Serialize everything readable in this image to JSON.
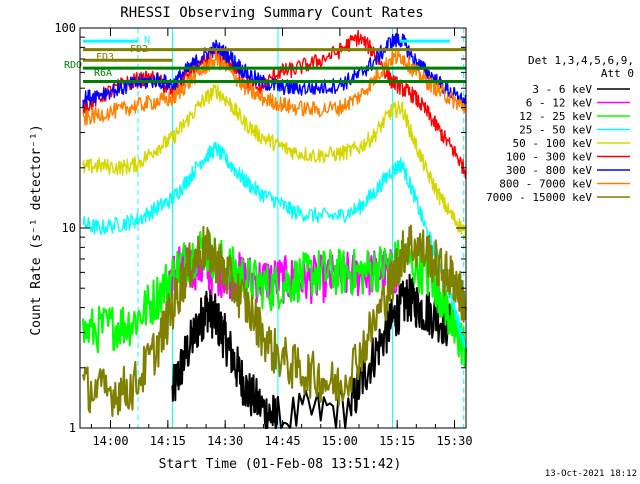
{
  "chart_data": {
    "type": "line",
    "title": "RHESSI Observing Summary Count Rates",
    "xlabel": "Start Time (01-Feb-08 13:51:42)",
    "ylabel": "Count Rate (s⁻¹ detector⁻¹)",
    "x_range_minutes": [
      13.867,
      15.55
    ],
    "x_tick_labels": [
      "14:00",
      "14:15",
      "14:30",
      "14:45",
      "15:00",
      "15:15",
      "15:30"
    ],
    "x_tick_values_hours": [
      14.0,
      14.25,
      14.5,
      14.75,
      15.0,
      15.25,
      15.5
    ],
    "y_scale": "log",
    "ylim": [
      1,
      100
    ],
    "y_tick_labels": [
      "1",
      "10",
      "100"
    ],
    "y_tick_values": [
      1,
      10,
      100
    ],
    "footer_date": "13-Oct-2021 18:12",
    "legend": {
      "placement": "right",
      "header_line1": "Det 1,3,4,5,6,9,",
      "header_line2": "Att 0",
      "entries": [
        {
          "label": "3 - 6 keV",
          "color": "#000000"
        },
        {
          "label": "6 - 12 keV",
          "color": "#ff00ff"
        },
        {
          "label": "12 - 25 keV",
          "color": "#00ff00"
        },
        {
          "label": "25 - 50 keV",
          "color": "#00ffff"
        },
        {
          "label": "50 - 100 keV",
          "color": "#d7d700"
        },
        {
          "label": "100 - 300 keV",
          "color": "#ff0000"
        },
        {
          "label": "300 - 800 keV",
          "color": "#0000ff"
        },
        {
          "label": "800 - 7000 keV",
          "color": "#ff8000"
        },
        {
          "label": "7000 - 15000 keV",
          "color": "#808000"
        }
      ]
    },
    "flag_bars": [
      {
        "label": "N",
        "color": "#00ffff",
        "segments": [
          [
            13.88,
            14.12
          ],
          [
            15.26,
            15.48
          ]
        ],
        "y": 86
      },
      {
        "label": "FD2",
        "color": "#808000",
        "segments": [
          [
            13.88,
            15.55
          ]
        ],
        "y": 78
      },
      {
        "label": "FD3",
        "color": "#808000",
        "segments": [
          [
            13.88,
            14.27
          ]
        ],
        "y": 69
      },
      {
        "label": "RDO",
        "color": "#008000",
        "segments": [
          [
            13.88,
            15.55
          ]
        ],
        "y": 63
      },
      {
        "label": "R6A",
        "color": "#008000",
        "segments": [
          [
            13.88,
            15.55
          ]
        ],
        "y": 54
      }
    ],
    "vertical_markers": [
      {
        "x": 14.27,
        "color": "#00ffff",
        "style": "solid"
      },
      {
        "x": 14.73,
        "color": "#00ffff",
        "style": "solid"
      },
      {
        "x": 15.23,
        "color": "#00ffff",
        "style": "solid"
      },
      {
        "x": 14.12,
        "color": "#00ffff",
        "style": "dashed"
      },
      {
        "x": 15.54,
        "color": "#00ffff",
        "style": "dashed"
      }
    ],
    "series": [
      {
        "name": "3 - 6 keV",
        "color": "#000000",
        "x": [
          14.27,
          14.32,
          14.38,
          14.42,
          14.46,
          14.5,
          14.55,
          14.6,
          14.68,
          14.73,
          15.05,
          15.12,
          15.2,
          15.25,
          15.3,
          15.35,
          15.42,
          15.48
        ],
        "y": [
          1.5,
          2.2,
          3.2,
          4.0,
          3.5,
          2.8,
          2.0,
          1.5,
          1.2,
          1.1,
          1.3,
          2.0,
          3.0,
          3.8,
          4.5,
          4.0,
          3.6,
          3.2
        ]
      },
      {
        "name": "6 - 12 keV",
        "color": "#ff00ff",
        "x": [
          14.25,
          14.3,
          14.38,
          14.45,
          14.55,
          14.65,
          14.75,
          14.85,
          14.95,
          15.05,
          15.15,
          15.25
        ],
        "y": [
          5.5,
          6.2,
          6.5,
          6.0,
          5.8,
          5.5,
          5.5,
          5.5,
          5.6,
          5.8,
          6.0,
          6.0
        ]
      },
      {
        "name": "12 - 25 keV",
        "color": "#00ff00",
        "x": [
          13.88,
          14.0,
          14.1,
          14.2,
          14.3,
          14.4,
          14.5,
          14.6,
          14.7,
          14.8,
          14.9,
          15.0,
          15.1,
          15.2,
          15.3,
          15.4,
          15.45,
          15.5,
          15.55
        ],
        "y": [
          3.0,
          3.2,
          3.4,
          4.5,
          6.5,
          8.0,
          6.5,
          5.5,
          5.0,
          5.5,
          6.0,
          6.0,
          6.0,
          6.5,
          7.0,
          5.5,
          4.5,
          3.0,
          2.5
        ]
      },
      {
        "name": "25 - 50 keV",
        "color": "#00ffff",
        "x": [
          13.88,
          13.95,
          14.05,
          14.12,
          14.2,
          14.27,
          14.33,
          14.4,
          14.46,
          14.52,
          14.58,
          14.65,
          14.73,
          14.8,
          14.9,
          15.0,
          15.08,
          15.15,
          15.22,
          15.27,
          15.32,
          15.38,
          15.44,
          15.5,
          15.55
        ],
        "y": [
          10.5,
          10.0,
          10.5,
          11.0,
          12.5,
          14.0,
          17.0,
          22.0,
          25.0,
          21.0,
          17.5,
          15.0,
          13.5,
          12.0,
          11.5,
          11.5,
          12.5,
          15.0,
          19.0,
          21.0,
          15.0,
          9.5,
          6.5,
          4.0,
          2.5
        ]
      },
      {
        "name": "50 - 100 keV",
        "color": "#d7d700",
        "x": [
          13.88,
          13.95,
          14.05,
          14.12,
          14.2,
          14.27,
          14.33,
          14.4,
          14.46,
          14.52,
          14.58,
          14.65,
          14.73,
          14.8,
          14.9,
          15.0,
          15.08,
          15.15,
          15.22,
          15.27,
          15.32,
          15.38,
          15.44,
          15.5,
          15.55
        ],
        "y": [
          20.0,
          20.5,
          20.0,
          21.0,
          25.0,
          28.0,
          34.0,
          43.0,
          49.0,
          42.0,
          34.0,
          29.0,
          26.0,
          24.0,
          23.0,
          23.5,
          25.0,
          29.0,
          38.0,
          40.0,
          28.0,
          19.0,
          14.0,
          11.0,
          9.5
        ]
      },
      {
        "name": "100 - 300 keV",
        "color": "#ff0000",
        "x": [
          13.88,
          13.95,
          14.05,
          14.12,
          14.2,
          14.27,
          14.33,
          14.4,
          14.46,
          14.52,
          14.58,
          14.65,
          14.73,
          14.8,
          14.9,
          15.0,
          15.08,
          15.15,
          15.22,
          15.27,
          15.32,
          15.38,
          15.44,
          15.5,
          15.55
        ],
        "y": [
          40.0,
          45.0,
          52.0,
          55.0,
          56.0,
          47.0,
          58.0,
          66.0,
          73.0,
          66.0,
          55.0,
          49.0,
          60.0,
          62.0,
          68.0,
          77.0,
          90.0,
          76.0,
          55.0,
          50.0,
          46.0,
          38.0,
          30.0,
          24.0,
          19.0
        ]
      },
      {
        "name": "300 - 800 keV",
        "color": "#0000ff",
        "x": [
          13.88,
          13.95,
          14.05,
          14.12,
          14.2,
          14.27,
          14.33,
          14.4,
          14.46,
          14.52,
          14.58,
          14.65,
          14.73,
          14.8,
          14.9,
          15.0,
          15.08,
          15.15,
          15.22,
          15.27,
          15.32,
          15.38,
          15.44,
          15.5,
          15.55
        ],
        "y": [
          44.0,
          47.0,
          50.0,
          53.0,
          55.0,
          52.0,
          61.0,
          72.0,
          80.0,
          72.0,
          61.0,
          54.0,
          51.0,
          50.0,
          50.0,
          52.0,
          58.0,
          68.0,
          85.0,
          88.0,
          70.0,
          60.0,
          52.0,
          46.0,
          42.0
        ]
      },
      {
        "name": "800 - 7000 keV",
        "color": "#ff8000",
        "x": [
          13.88,
          13.95,
          14.05,
          14.12,
          14.2,
          14.27,
          14.33,
          14.4,
          14.46,
          14.52,
          14.58,
          14.65,
          14.73,
          14.8,
          14.9,
          15.0,
          15.08,
          15.15,
          15.22,
          15.27,
          15.32,
          15.38,
          15.44,
          15.5,
          15.55
        ],
        "y": [
          35.0,
          37.0,
          39.0,
          41.0,
          43.0,
          44.0,
          52.0,
          62.0,
          70.0,
          61.0,
          51.0,
          45.0,
          42.0,
          40.0,
          39.0,
          40.0,
          45.0,
          55.0,
          70.0,
          72.0,
          62.0,
          54.0,
          48.0,
          43.0,
          40.0
        ]
      },
      {
        "name": "7000 - 15000 keV",
        "color": "#808000",
        "x": [
          13.88,
          14.0,
          14.1,
          14.2,
          14.27,
          14.33,
          14.4,
          14.46,
          14.52,
          14.6,
          14.7,
          14.8,
          14.9,
          15.0,
          15.1,
          15.2,
          15.25,
          15.3,
          15.38,
          15.45,
          15.5,
          15.55
        ],
        "y": [
          1.6,
          1.5,
          1.6,
          2.5,
          4.0,
          6.0,
          8.0,
          7.0,
          5.5,
          4.0,
          2.5,
          2.0,
          1.8,
          1.6,
          2.5,
          4.5,
          6.5,
          8.5,
          7.5,
          6.0,
          5.5,
          4.0
        ]
      }
    ]
  }
}
